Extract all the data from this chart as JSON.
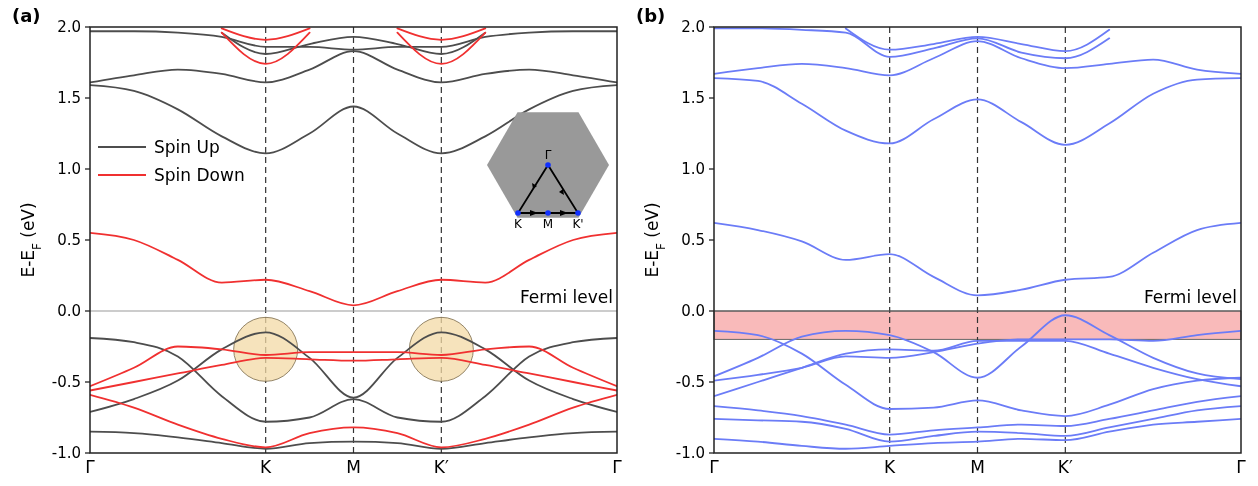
{
  "chart_data": [
    {
      "type": "line",
      "title": "(a)",
      "ylabel": "E-E$_{F}$ (eV)",
      "categories": [
        "Γ",
        null,
        null,
        null,
        "K",
        null,
        "M",
        null,
        "K′",
        null,
        null,
        null,
        "Γ"
      ],
      "ylim": [
        -1,
        2
      ],
      "yticks": [
        {
          "value": -1,
          "label": "-1.0"
        },
        {
          "value": -0.5,
          "label": "-0.5"
        },
        {
          "value": 0,
          "label": "0.0"
        },
        {
          "value": 0.5,
          "label": "0.5"
        },
        {
          "value": 1,
          "label": "1.0"
        },
        {
          "value": 1.5,
          "label": "1.5"
        },
        {
          "value": 2,
          "label": "2.0"
        }
      ],
      "legend": "left",
      "series": [
        {
          "name": "Spin Up",
          "color": "#4d4d4d",
          "values": [
            1.97,
            1.97,
            1.96,
            1.93,
            1.86,
            1.86,
            1.84,
            1.86,
            1.86,
            1.93,
            1.96,
            1.97,
            1.97
          ]
        },
        {
          "color": "#4d4d4d",
          "values": [
            null,
            null,
            null,
            1.96,
            1.81,
            1.88,
            1.93,
            1.88,
            1.81,
            1.96,
            null,
            null,
            null
          ]
        },
        {
          "color": "#4d4d4d",
          "values": [
            1.61,
            1.66,
            1.7,
            1.67,
            1.61,
            1.7,
            1.83,
            1.7,
            1.61,
            1.67,
            1.7,
            1.66,
            1.61
          ]
        },
        {
          "color": "#4d4d4d",
          "values": [
            1.59,
            1.55,
            1.42,
            1.23,
            1.11,
            1.25,
            1.44,
            1.25,
            1.11,
            1.23,
            1.42,
            1.55,
            1.59
          ]
        },
        {
          "color": "#4d4d4d",
          "values": [
            -0.19,
            -0.22,
            -0.32,
            -0.6,
            -0.78,
            -0.75,
            -0.62,
            -0.75,
            -0.78,
            -0.6,
            -0.32,
            -0.22,
            -0.19
          ]
        },
        {
          "color": "#4d4d4d",
          "values": [
            -0.71,
            -0.62,
            -0.49,
            -0.27,
            -0.15,
            -0.33,
            -0.61,
            -0.33,
            -0.15,
            -0.27,
            -0.49,
            -0.62,
            -0.71
          ]
        },
        {
          "color": "#4d4d4d",
          "values": [
            -0.85,
            -0.86,
            -0.89,
            -0.93,
            -0.97,
            -0.93,
            -0.92,
            -0.93,
            -0.97,
            -0.93,
            -0.89,
            -0.86,
            -0.85
          ]
        },
        {
          "name": "Spin Down",
          "color": "#f03030",
          "values": [
            0.55,
            0.5,
            0.36,
            0.2,
            0.22,
            0.14,
            0.04,
            0.14,
            0.22,
            0.2,
            0.36,
            0.5,
            0.55
          ]
        },
        {
          "color": "#f03030",
          "values": [
            null,
            null,
            null,
            1.99,
            1.91,
            1.99,
            null,
            1.99,
            1.91,
            1.99,
            null,
            null,
            null
          ]
        },
        {
          "color": "#f03030",
          "values": [
            null,
            null,
            null,
            1.96,
            1.74,
            1.96,
            null,
            1.96,
            1.74,
            1.96,
            null,
            null,
            null
          ]
        },
        {
          "color": "#f03030",
          "values": [
            -0.53,
            -0.4,
            -0.25,
            -0.27,
            -0.31,
            -0.29,
            -0.29,
            -0.29,
            -0.31,
            -0.27,
            -0.25,
            -0.4,
            -0.53
          ]
        },
        {
          "color": "#f03030",
          "values": [
            -0.56,
            -0.5,
            -0.44,
            -0.38,
            -0.33,
            -0.34,
            -0.35,
            -0.34,
            -0.33,
            -0.38,
            -0.44,
            -0.5,
            -0.56
          ]
        },
        {
          "color": "#f03030",
          "values": [
            -0.59,
            -0.68,
            -0.8,
            -0.9,
            -0.96,
            -0.86,
            -0.82,
            -0.86,
            -0.96,
            -0.9,
            -0.8,
            -0.68,
            -0.59
          ]
        }
      ],
      "ref_lines": [
        {
          "axis": "x",
          "value": "K",
          "color": "#333333",
          "line_style": "dashed"
        },
        {
          "axis": "x",
          "value": "M",
          "color": "#333333",
          "line_style": "dashed"
        },
        {
          "axis": "x",
          "value": "K′",
          "color": "#333333",
          "line_style": "dashed"
        },
        {
          "axis": "y",
          "value": 0,
          "label": "Fermi level",
          "color": "#999999",
          "line_style": "solid"
        }
      ],
      "annotations": [
        "Γ",
        "K",
        "M",
        "K'"
      ]
    },
    {
      "type": "line",
      "title": "(b)",
      "ylabel": "E-E$_{F}$ (eV)",
      "categories": [
        "Γ",
        null,
        null,
        null,
        "K",
        null,
        "M",
        null,
        "K′",
        null,
        null,
        null,
        "Γ"
      ],
      "ylim": [
        -1,
        2
      ],
      "yticks": [
        {
          "value": -1,
          "label": "-1.0"
        },
        {
          "value": -0.5,
          "label": "-0.5"
        },
        {
          "value": 0,
          "label": "0.0"
        },
        {
          "value": 0.5,
          "label": "0.5"
        },
        {
          "value": 1,
          "label": "1.0"
        },
        {
          "value": 1.5,
          "label": "1.5"
        },
        {
          "value": 2,
          "label": "2.0"
        }
      ],
      "series": [
        {
          "color": "#6b7cf7",
          "values": [
            1.99,
            1.99,
            1.98,
            1.96,
            1.79,
            1.85,
            1.92,
            1.82,
            1.78,
            1.92,
            null,
            null,
            null
          ]
        },
        {
          "color": "#6b7cf7",
          "values": [
            null,
            null,
            null,
            1.99,
            1.84,
            1.88,
            1.93,
            1.88,
            1.83,
            1.98,
            null,
            null,
            null
          ]
        },
        {
          "color": "#6b7cf7",
          "values": [
            1.67,
            1.71,
            1.74,
            1.71,
            1.66,
            1.78,
            1.9,
            1.78,
            1.71,
            1.74,
            1.77,
            1.7,
            1.67
          ]
        },
        {
          "color": "#6b7cf7",
          "values": [
            1.64,
            1.62,
            1.46,
            1.27,
            1.18,
            1.35,
            1.49,
            1.33,
            1.17,
            1.32,
            1.53,
            1.63,
            1.64
          ]
        },
        {
          "color": "#6b7cf7",
          "values": [
            0.62,
            0.57,
            0.49,
            0.36,
            0.4,
            0.24,
            0.11,
            0.15,
            0.22,
            0.24,
            0.41,
            0.57,
            0.62
          ]
        },
        {
          "color": "#6b7cf7",
          "values": [
            -0.14,
            -0.17,
            -0.3,
            -0.52,
            -0.69,
            -0.68,
            -0.63,
            -0.7,
            -0.74,
            -0.66,
            -0.55,
            -0.49,
            -0.47
          ]
        },
        {
          "color": "#6b7cf7",
          "values": [
            -0.46,
            -0.33,
            -0.18,
            -0.14,
            -0.17,
            -0.29,
            -0.47,
            -0.25,
            -0.03,
            -0.17,
            -0.33,
            -0.44,
            -0.48
          ]
        },
        {
          "color": "#6b7cf7",
          "values": [
            -0.49,
            -0.45,
            -0.4,
            -0.32,
            -0.33,
            -0.29,
            -0.23,
            -0.2,
            -0.2,
            -0.2,
            -0.21,
            -0.17,
            -0.14
          ]
        },
        {
          "color": "#6b7cf7",
          "values": [
            -0.6,
            -0.5,
            -0.4,
            -0.3,
            -0.27,
            -0.28,
            -0.21,
            -0.21,
            -0.21,
            -0.3,
            -0.4,
            -0.48,
            -0.53
          ]
        },
        {
          "color": "#6b7cf7",
          "values": [
            -0.67,
            -0.7,
            -0.74,
            -0.8,
            -0.87,
            -0.84,
            -0.82,
            -0.8,
            -0.81,
            -0.76,
            -0.7,
            -0.64,
            -0.6
          ]
        },
        {
          "color": "#6b7cf7",
          "values": [
            -0.76,
            -0.77,
            -0.78,
            -0.83,
            -0.92,
            -0.88,
            -0.85,
            -0.86,
            -0.88,
            -0.82,
            -0.76,
            -0.7,
            -0.67
          ]
        },
        {
          "color": "#6b7cf7",
          "values": [
            -0.9,
            -0.92,
            -0.95,
            -0.97,
            -0.95,
            -0.93,
            -0.92,
            -0.9,
            -0.91,
            -0.85,
            -0.8,
            -0.78,
            -0.76
          ]
        }
      ],
      "ref_lines": [
        {
          "axis": "x",
          "value": "K",
          "color": "#333333",
          "line_style": "dashed"
        },
        {
          "axis": "x",
          "value": "M",
          "color": "#333333",
          "line_style": "dashed"
        },
        {
          "axis": "x",
          "value": "K′",
          "color": "#333333",
          "line_style": "dashed"
        },
        {
          "axis": "y",
          "value": 0,
          "label": "Fermi level",
          "color": "#555555",
          "line_style": "solid"
        }
      ],
      "bands": [
        {
          "axis": "y",
          "from": -0.2,
          "to": 0,
          "color": "#f9baba"
        }
      ]
    }
  ]
}
